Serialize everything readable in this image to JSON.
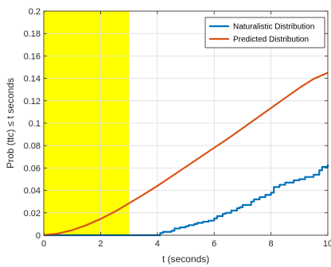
{
  "chart_data": {
    "type": "line",
    "xlabel": "t (seconds)",
    "ylabel": "Prob (ttc) ≤ t seconds",
    "xlim": [
      0,
      10
    ],
    "ylim": [
      0,
      0.2
    ],
    "x_ticks": [
      0,
      2,
      4,
      6,
      8,
      10
    ],
    "x_tick_labels": [
      "0",
      "2",
      "4",
      "6",
      "8",
      "10"
    ],
    "y_ticks": [
      0,
      0.02,
      0.04,
      0.06,
      0.08,
      0.1,
      0.12,
      0.14,
      0.16,
      0.18,
      0.2
    ],
    "y_tick_labels": [
      "0",
      "0.02",
      "0.04",
      "0.06",
      "0.08",
      "0.1",
      "0.12",
      "0.14",
      "0.16",
      "0.18",
      "0.2"
    ],
    "grid": true,
    "legend_position": "top-right",
    "shaded_region": {
      "x_start": 0,
      "x_end": 3,
      "color": "#ffff00"
    },
    "series": [
      {
        "name": "Naturalistic Distribution",
        "color": "#0072bd",
        "x": [
          0,
          4.0,
          4.1,
          4.2,
          4.5,
          4.6,
          4.8,
          5.0,
          5.1,
          5.3,
          5.4,
          5.6,
          5.8,
          6.0,
          6.1,
          6.3,
          6.4,
          6.6,
          6.8,
          6.9,
          7.0,
          7.3,
          7.4,
          7.6,
          7.8,
          8.0,
          8.1,
          8.3,
          8.5,
          8.8,
          9.0,
          9.2,
          9.5,
          9.7,
          9.8,
          10.0
        ],
        "y": [
          0,
          0,
          0.002,
          0.003,
          0.004,
          0.006,
          0.007,
          0.008,
          0.009,
          0.01,
          0.011,
          0.012,
          0.013,
          0.015,
          0.017,
          0.019,
          0.02,
          0.022,
          0.024,
          0.025,
          0.027,
          0.03,
          0.032,
          0.034,
          0.036,
          0.038,
          0.043,
          0.045,
          0.047,
          0.049,
          0.05,
          0.052,
          0.054,
          0.058,
          0.061,
          0.063
        ]
      },
      {
        "name": "Predicted Distribution",
        "color": "#d95319",
        "x": [
          0,
          0.5,
          1,
          1.5,
          2,
          2.5,
          3,
          3.5,
          4,
          4.5,
          5,
          5.5,
          6,
          6.5,
          7,
          7.5,
          8,
          8.5,
          9,
          9.5,
          10
        ],
        "y": [
          0,
          0.0015,
          0.0045,
          0.009,
          0.0145,
          0.021,
          0.0285,
          0.036,
          0.044,
          0.0525,
          0.061,
          0.0695,
          0.078,
          0.0865,
          0.0955,
          0.1045,
          0.1135,
          0.1225,
          0.1315,
          0.1395,
          0.145
        ]
      }
    ]
  }
}
